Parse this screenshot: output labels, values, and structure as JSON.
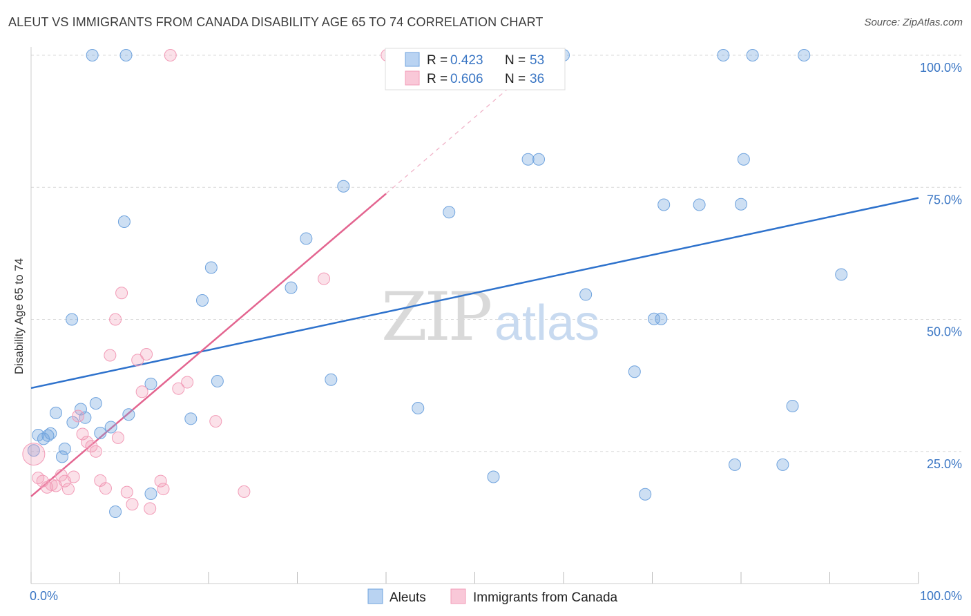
{
  "title": "ALEUT VS IMMIGRANTS FROM CANADA DISABILITY AGE 65 TO 74 CORRELATION CHART",
  "source": "Source: ZipAtlas.com",
  "watermark": {
    "zip": "ZIP",
    "atlas": "atlas"
  },
  "colors": {
    "blue": "#6fa3de",
    "blue_line": "#2e72cc",
    "pink": "#f29bb7",
    "pink_line": "#e36590",
    "tick": "#3a76c4"
  },
  "legend": {
    "r_label": "R =",
    "n_label": "N =",
    "rows": [
      {
        "r": "0.423",
        "n": "53"
      },
      {
        "r": "0.606",
        "n": "36"
      }
    ]
  },
  "chart_data": {
    "type": "scatter",
    "ylabel": "Disability Age 65 to 74",
    "xlim": [
      0,
      100
    ],
    "ylim": [
      0,
      100
    ],
    "x_tick_labels": [
      "0.0%",
      "100.0%"
    ],
    "y_tick_labels": [
      "100.0%",
      "75.0%",
      "50.0%",
      "25.0%"
    ],
    "y_ticks": [
      100,
      75,
      50,
      25
    ],
    "series": [
      {
        "name": "Aleuts",
        "color": "#6fa3de",
        "trend": {
          "x0": 0,
          "y0": 37,
          "x1": 100,
          "y1": 73
        },
        "points": [
          [
            0.3,
            25.2
          ],
          [
            0.8,
            28.1
          ],
          [
            1.4,
            27.4
          ],
          [
            1.9,
            28.0
          ],
          [
            2.2,
            28.4
          ],
          [
            2.8,
            32.3
          ],
          [
            3.5,
            24.0
          ],
          [
            3.8,
            25.5
          ],
          [
            4.6,
            50.0
          ],
          [
            4.7,
            30.5
          ],
          [
            5.6,
            33.0
          ],
          [
            6.1,
            31.4
          ],
          [
            7.3,
            34.1
          ],
          [
            7.8,
            28.5
          ],
          [
            9.0,
            29.6
          ],
          [
            9.5,
            13.6
          ],
          [
            10.5,
            68.5
          ],
          [
            11.0,
            32.0
          ],
          [
            13.5,
            17.0
          ],
          [
            13.5,
            37.8
          ],
          [
            18.0,
            31.2
          ],
          [
            19.3,
            53.6
          ],
          [
            20.3,
            59.8
          ],
          [
            21.0,
            38.3
          ],
          [
            31.0,
            65.3
          ],
          [
            29.3,
            56.0
          ],
          [
            33.8,
            38.6
          ],
          [
            35.2,
            75.2
          ],
          [
            43.6,
            33.2
          ],
          [
            47.1,
            70.3
          ],
          [
            52.1,
            20.2
          ],
          [
            56.0,
            80.3
          ],
          [
            57.2,
            80.3
          ],
          [
            62.5,
            54.7
          ],
          [
            68.0,
            40.1
          ],
          [
            69.2,
            16.9
          ],
          [
            70.2,
            50.1
          ],
          [
            71.0,
            50.1
          ],
          [
            71.3,
            71.7
          ],
          [
            75.3,
            71.7
          ],
          [
            80.0,
            71.8
          ],
          [
            79.3,
            22.5
          ],
          [
            80.3,
            80.3
          ],
          [
            84.7,
            22.5
          ],
          [
            85.8,
            33.6
          ],
          [
            91.3,
            58.5
          ],
          [
            6.9,
            100
          ],
          [
            10.7,
            100
          ],
          [
            55.4,
            100
          ],
          [
            60.0,
            100
          ],
          [
            78.0,
            100
          ],
          [
            81.3,
            100
          ],
          [
            87.1,
            100
          ]
        ]
      },
      {
        "name": "Immigrants from Canada",
        "color": "#f29bb7",
        "trend": {
          "x0": 0,
          "y0": 16.5,
          "x1": 40,
          "y1": 73.8
        },
        "trend_dashed": {
          "x0": 40,
          "y0": 73.8,
          "x1": 55,
          "y1": 95.5
        },
        "points": [
          [
            0.3,
            24.5
          ],
          [
            0.8,
            20.0
          ],
          [
            1.3,
            19.4
          ],
          [
            1.8,
            18.2
          ],
          [
            2.3,
            18.7
          ],
          [
            2.8,
            18.5
          ],
          [
            3.4,
            20.5
          ],
          [
            3.8,
            19.4
          ],
          [
            4.2,
            17.9
          ],
          [
            4.8,
            20.2
          ],
          [
            5.3,
            31.7
          ],
          [
            5.8,
            28.3
          ],
          [
            6.3,
            26.8
          ],
          [
            6.8,
            26.0
          ],
          [
            7.3,
            25.0
          ],
          [
            7.8,
            19.5
          ],
          [
            8.4,
            18.0
          ],
          [
            8.9,
            43.2
          ],
          [
            9.5,
            50.0
          ],
          [
            9.8,
            27.6
          ],
          [
            10.2,
            55.0
          ],
          [
            10.8,
            17.3
          ],
          [
            11.4,
            15.0
          ],
          [
            12.0,
            42.3
          ],
          [
            12.5,
            36.3
          ],
          [
            13.0,
            43.4
          ],
          [
            13.4,
            14.2
          ],
          [
            14.6,
            19.4
          ],
          [
            14.9,
            17.9
          ],
          [
            16.6,
            36.9
          ],
          [
            17.6,
            38.1
          ],
          [
            20.8,
            30.7
          ],
          [
            24.0,
            17.4
          ],
          [
            33.0,
            57.7
          ],
          [
            15.7,
            100
          ],
          [
            40.1,
            100
          ]
        ]
      }
    ],
    "legend_position": "top-center",
    "grid": true
  },
  "bottom_legend": [
    {
      "label": "Aleuts"
    },
    {
      "label": "Immigrants from Canada"
    }
  ]
}
